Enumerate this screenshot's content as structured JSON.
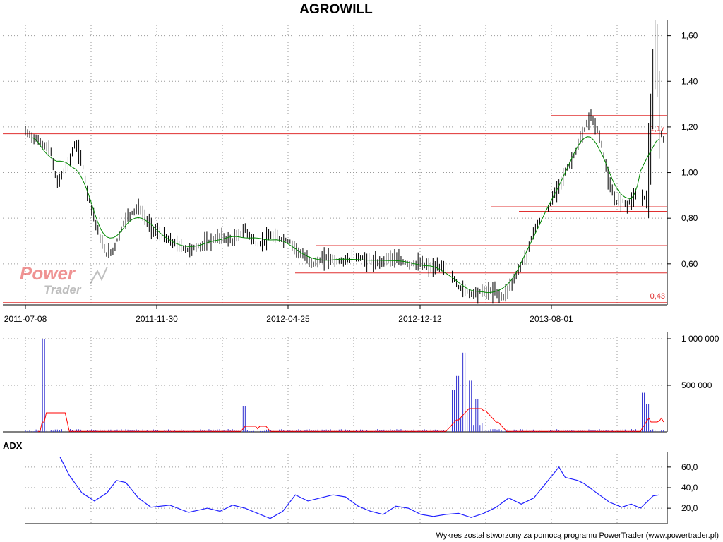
{
  "chart_data": [
    {
      "type": "candlestick",
      "title": "AGROWILL",
      "x_tick_labels": [
        "2011-07-08",
        "2011-11-30",
        "2012-04-25",
        "2012-12-12",
        "2013-08-01"
      ],
      "y_tick_labels": [
        "1,60",
        "1,40",
        "1,20",
        "1,00",
        "0,80",
        "0,60"
      ],
      "ylim": [
        0.42,
        1.67
      ],
      "grid": true,
      "horizontal_levels": [
        {
          "label": "1,17",
          "value": 1.17
        },
        {
          "label": "0,43",
          "value": 0.43
        },
        {
          "label": "",
          "value": 1.25
        },
        {
          "label": "",
          "value": 0.85
        },
        {
          "label": "",
          "value": 0.83
        },
        {
          "label": "",
          "value": 0.68
        },
        {
          "label": "",
          "value": 0.56
        }
      ],
      "price_path": [
        [
          0,
          1.18
        ],
        [
          0.02,
          1.14
        ],
        [
          0.04,
          1.1
        ],
        [
          0.05,
          0.95
        ],
        [
          0.07,
          1.05
        ],
        [
          0.08,
          1.13
        ],
        [
          0.09,
          1.05
        ],
        [
          0.1,
          0.9
        ],
        [
          0.12,
          0.7
        ],
        [
          0.13,
          0.64
        ],
        [
          0.14,
          0.66
        ],
        [
          0.16,
          0.8
        ],
        [
          0.18,
          0.85
        ],
        [
          0.2,
          0.76
        ],
        [
          0.23,
          0.7
        ],
        [
          0.26,
          0.66
        ],
        [
          0.28,
          0.68
        ],
        [
          0.31,
          0.72
        ],
        [
          0.33,
          0.7
        ],
        [
          0.35,
          0.75
        ],
        [
          0.37,
          0.68
        ],
        [
          0.39,
          0.72
        ],
        [
          0.42,
          0.7
        ],
        [
          0.44,
          0.64
        ],
        [
          0.46,
          0.6
        ],
        [
          0.48,
          0.63
        ],
        [
          0.5,
          0.61
        ],
        [
          0.53,
          0.63
        ],
        [
          0.56,
          0.6
        ],
        [
          0.58,
          0.63
        ],
        [
          0.61,
          0.6
        ],
        [
          0.63,
          0.6
        ],
        [
          0.65,
          0.58
        ],
        [
          0.67,
          0.59
        ],
        [
          0.69,
          0.5
        ],
        [
          0.71,
          0.47
        ],
        [
          0.73,
          0.48
        ],
        [
          0.75,
          0.48
        ],
        [
          0.76,
          0.45
        ],
        [
          0.78,
          0.54
        ],
        [
          0.8,
          0.65
        ],
        [
          0.81,
          0.75
        ],
        [
          0.83,
          0.82
        ],
        [
          0.85,
          0.95
        ],
        [
          0.87,
          1.05
        ],
        [
          0.89,
          1.18
        ],
        [
          0.9,
          1.25
        ],
        [
          0.91,
          1.2
        ],
        [
          0.92,
          1.1
        ],
        [
          0.93,
          0.95
        ],
        [
          0.94,
          0.87
        ],
        [
          0.95,
          0.88
        ],
        [
          0.96,
          0.86
        ],
        [
          0.975,
          0.92
        ],
        [
          0.99,
          0.88
        ],
        [
          1.0,
          1.3
        ],
        [
          1.005,
          1.6
        ],
        [
          1.01,
          1.2
        ],
        [
          1.02,
          1.12
        ]
      ]
    },
    {
      "type": "bar",
      "name": "volume",
      "y_tick_labels": [
        "1 000 000",
        "500 000"
      ],
      "ylim": [
        0,
        1000000
      ],
      "spikes": [
        [
          0.03,
          1000000
        ],
        [
          0.35,
          280000
        ],
        [
          0.68,
          450000
        ],
        [
          0.69,
          600000
        ],
        [
          0.7,
          850000
        ],
        [
          0.71,
          550000
        ],
        [
          0.72,
          350000
        ],
        [
          0.985,
          420000
        ],
        [
          0.99,
          300000
        ]
      ],
      "average_line_color": "#ff0000",
      "bar_color": "#3030d0"
    },
    {
      "type": "line",
      "indicator": "ADX",
      "y_tick_labels": [
        "60,0",
        "40,0",
        "20,0"
      ],
      "ylim": [
        5,
        75
      ],
      "values": [
        [
          0.055,
          70
        ],
        [
          0.07,
          52
        ],
        [
          0.09,
          35
        ],
        [
          0.11,
          27
        ],
        [
          0.13,
          35
        ],
        [
          0.145,
          47
        ],
        [
          0.16,
          45
        ],
        [
          0.18,
          30
        ],
        [
          0.2,
          21
        ],
        [
          0.23,
          23
        ],
        [
          0.26,
          16
        ],
        [
          0.29,
          20
        ],
        [
          0.31,
          17
        ],
        [
          0.33,
          23
        ],
        [
          0.35,
          20
        ],
        [
          0.37,
          15
        ],
        [
          0.39,
          10
        ],
        [
          0.41,
          17
        ],
        [
          0.43,
          33
        ],
        [
          0.45,
          27
        ],
        [
          0.47,
          30
        ],
        [
          0.49,
          33
        ],
        [
          0.51,
          31
        ],
        [
          0.53,
          22
        ],
        [
          0.55,
          17
        ],
        [
          0.57,
          14
        ],
        [
          0.59,
          22
        ],
        [
          0.61,
          20
        ],
        [
          0.63,
          14
        ],
        [
          0.65,
          12
        ],
        [
          0.67,
          14
        ],
        [
          0.69,
          15
        ],
        [
          0.71,
          11
        ],
        [
          0.73,
          15
        ],
        [
          0.75,
          21
        ],
        [
          0.77,
          30
        ],
        [
          0.79,
          24
        ],
        [
          0.81,
          30
        ],
        [
          0.83,
          45
        ],
        [
          0.85,
          60
        ],
        [
          0.86,
          50
        ],
        [
          0.88,
          47
        ],
        [
          0.89,
          44
        ],
        [
          0.91,
          35
        ],
        [
          0.93,
          26
        ],
        [
          0.95,
          21
        ],
        [
          0.965,
          24
        ],
        [
          0.98,
          20
        ],
        [
          1.0,
          32
        ],
        [
          1.01,
          33
        ]
      ],
      "line_color": "#2020ff"
    }
  ],
  "logo": {
    "line1": "Power",
    "line2": "Trader"
  },
  "indicator_label": "ADX",
  "footer": "Wykres został stworzony za pomocą programu PowerTrader (www.powertrader.pl)",
  "colors": {
    "level": "#e03030",
    "moving_avg": "#008800",
    "adx": "#2020ff",
    "volume": "#3030d0",
    "logo_red": "#e23b3b",
    "logo_gray": "#8a8a8a"
  }
}
